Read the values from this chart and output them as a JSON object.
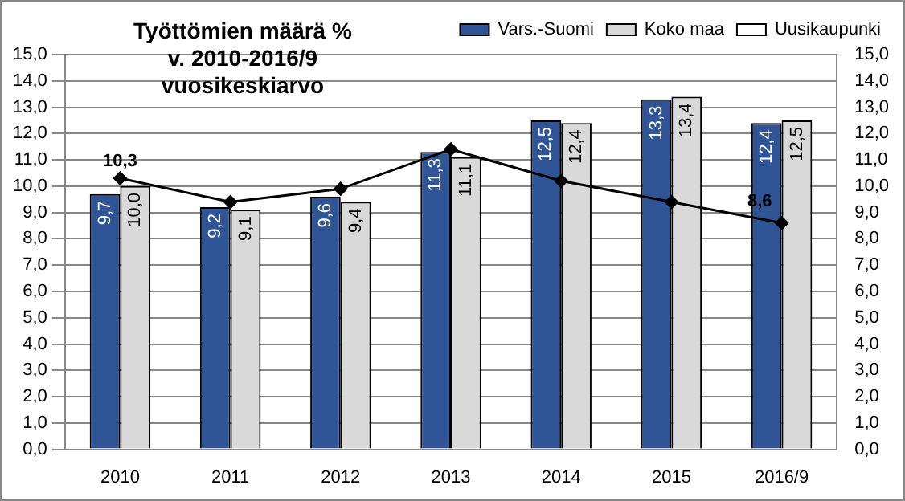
{
  "chart_data": {
    "type": "bar",
    "title": "Työttömien  määrä %\nv. 2010-2016/9\nvuosikeskiarvo",
    "categories": [
      "2010",
      "2011",
      "2012",
      "2013",
      "2014",
      "2015",
      "2016/9"
    ],
    "series": [
      {
        "name": "Vars.-Suomi",
        "color": "#2f5597",
        "values": [
          9.7,
          9.2,
          9.6,
          11.3,
          12.5,
          13.3,
          12.4
        ],
        "value_labels": [
          "9,7",
          "9,2",
          "9,6",
          "11,3",
          "12,5",
          "13,3",
          "12,4"
        ]
      },
      {
        "name": "Koko maa",
        "color": "#d9d9d9",
        "values": [
          10.0,
          9.1,
          9.4,
          11.1,
          12.4,
          13.4,
          12.5
        ],
        "value_labels": [
          "10,0",
          "9,1",
          "9,4",
          "11,1",
          "12,4",
          "13,4",
          "12,5"
        ]
      },
      {
        "name": "Uusikaupunki",
        "type": "line",
        "color": "#000000",
        "marker": "diamond",
        "values": [
          10.3,
          9.4,
          9.9,
          11.4,
          10.2,
          9.4,
          8.6
        ],
        "value_labels": [
          "10,3",
          null,
          null,
          null,
          null,
          null,
          "8,6"
        ]
      }
    ],
    "ylim": [
      0,
      15
    ],
    "yticks": [
      {
        "value": 0,
        "label": "0,0"
      },
      {
        "value": 1,
        "label": "1,0"
      },
      {
        "value": 2,
        "label": "2,0"
      },
      {
        "value": 3,
        "label": "3,0"
      },
      {
        "value": 4,
        "label": "4,0"
      },
      {
        "value": 5,
        "label": "5,0"
      },
      {
        "value": 6,
        "label": "6,0"
      },
      {
        "value": 7,
        "label": "7,0"
      },
      {
        "value": 8,
        "label": "8,0"
      },
      {
        "value": 9,
        "label": "9,0"
      },
      {
        "value": 10,
        "label": "10,0"
      },
      {
        "value": 11,
        "label": "11,0"
      },
      {
        "value": 12,
        "label": "12,0"
      },
      {
        "value": 13,
        "label": "13,0"
      },
      {
        "value": 14,
        "label": "14,0"
      },
      {
        "value": 15,
        "label": "15,0"
      }
    ],
    "y2lim": [
      0,
      15
    ],
    "y2ticks": [
      {
        "value": 0,
        "label": "0,0"
      },
      {
        "value": 1,
        "label": "1,0"
      },
      {
        "value": 2,
        "label": "2,0"
      },
      {
        "value": 3,
        "label": "3,0"
      },
      {
        "value": 4,
        "label": "4,0"
      },
      {
        "value": 5,
        "label": "5,0"
      },
      {
        "value": 6,
        "label": "6,0"
      },
      {
        "value": 7,
        "label": "7,0"
      },
      {
        "value": 8,
        "label": "8,0"
      },
      {
        "value": 9,
        "label": "9,0"
      },
      {
        "value": 10,
        "label": "10,0"
      },
      {
        "value": 11,
        "label": "11,0"
      },
      {
        "value": 12,
        "label": "12,0"
      },
      {
        "value": 13,
        "label": "13,0"
      },
      {
        "value": 14,
        "label": "14,0"
      },
      {
        "value": 15,
        "label": "15,0"
      }
    ],
    "grid": "y",
    "legend": "top right"
  }
}
